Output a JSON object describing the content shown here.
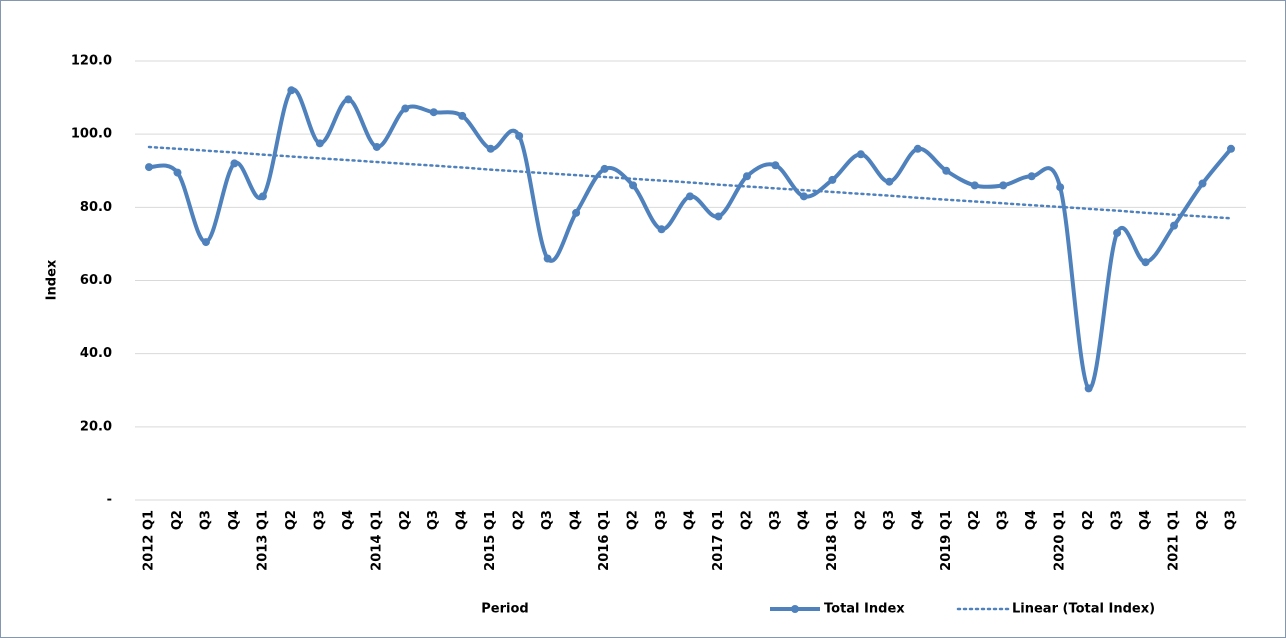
{
  "chart_data": {
    "type": "line",
    "categories": [
      "2012 Q1",
      "Q2",
      "Q3",
      "Q4",
      "2013 Q1",
      "Q2",
      "Q3",
      "Q4",
      "2014 Q1",
      "Q2",
      "Q3",
      "Q4",
      "2015 Q1",
      "Q2",
      "Q3",
      "Q4",
      "2016 Q1",
      "Q2",
      "Q3",
      "Q4",
      "2017 Q1",
      "Q2",
      "Q3",
      "Q4",
      "2018 Q1",
      "Q2",
      "Q3",
      "Q4",
      "2019 Q1",
      "Q2",
      "Q3",
      "Q4",
      "2020 Q1",
      "Q2",
      "Q3",
      "Q4",
      "2021 Q1",
      "Q2",
      "Q3"
    ],
    "series": [
      {
        "name": "Total Index",
        "color": "#4f81bd",
        "smooth": true,
        "markers": true,
        "values": [
          91,
          89.5,
          70.5,
          92,
          83,
          112,
          97.5,
          109.5,
          96.5,
          107,
          106,
          105,
          96,
          99.5,
          66,
          78.5,
          90.5,
          86,
          74,
          83,
          77.5,
          88.5,
          91.5,
          83,
          87.5,
          94.5,
          87,
          96,
          90,
          86,
          86,
          88.5,
          85.5,
          30.5,
          73,
          65,
          75,
          86.5,
          96
        ]
      },
      {
        "name": "Linear (Total Index)",
        "color": "#4f81bd",
        "dotted": true,
        "values": [
          96.5,
          96.0,
          95.5,
          95.0,
          94.4,
          93.9,
          93.4,
          92.9,
          92.4,
          91.9,
          91.4,
          90.9,
          90.3,
          89.8,
          89.3,
          88.8,
          88.3,
          87.8,
          87.3,
          86.8,
          86.2,
          85.7,
          85.2,
          84.7,
          84.2,
          83.7,
          83.2,
          82.6,
          82.1,
          81.6,
          81.1,
          80.6,
          80.1,
          79.6,
          79.1,
          78.5,
          78.0,
          77.5,
          77.0
        ]
      }
    ],
    "x_label": "Period",
    "y_label": "Index",
    "ylim": [
      0,
      120
    ],
    "yticks": [
      {
        "value": 0,
        "label": "-"
      },
      {
        "value": 20,
        "label": "20.0"
      },
      {
        "value": 40,
        "label": "40.0"
      },
      {
        "value": 60,
        "label": "60.0"
      },
      {
        "value": 80,
        "label": "80.0"
      },
      {
        "value": 100,
        "label": "100.0"
      },
      {
        "value": 120,
        "label": "120.0"
      }
    ],
    "grid": true
  }
}
